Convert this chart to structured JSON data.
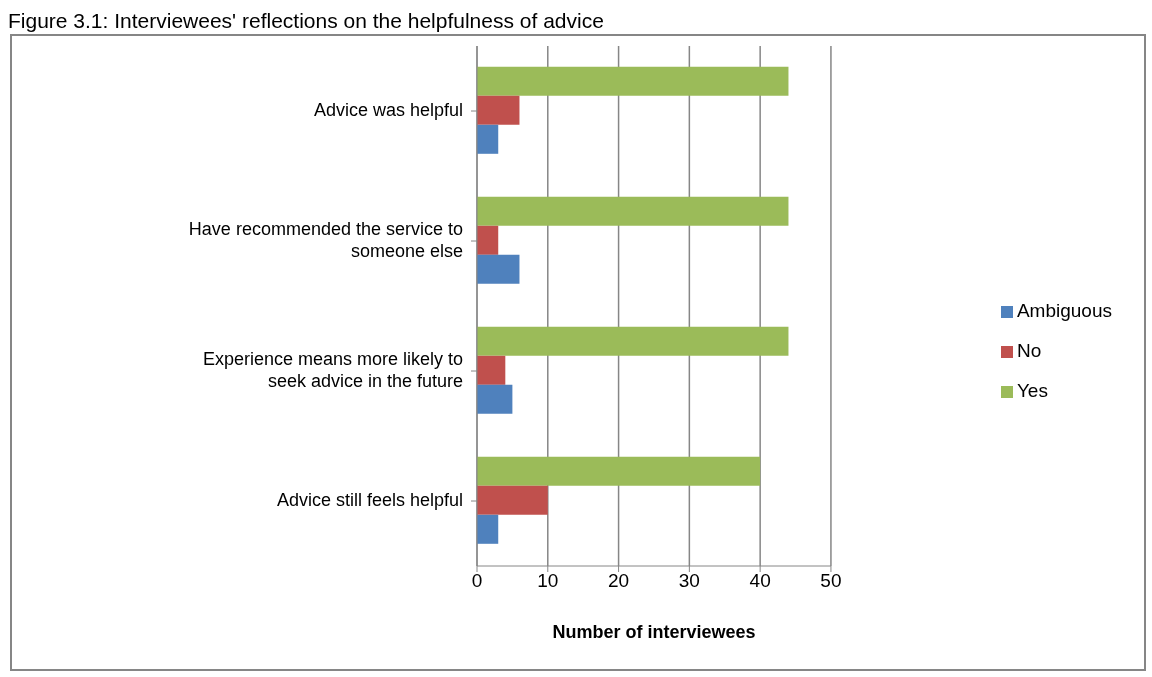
{
  "chart_data": {
    "type": "bar",
    "orientation": "horizontal",
    "title": "Figure 3.1: Interviewees' reflections on the helpfulness of advice",
    "xlabel": "Number of interviewees",
    "categories": [
      "Advice was helpful",
      "Have recommended the service to someone else",
      "Experience means more likely to seek advice in the future",
      "Advice still feels helpful"
    ],
    "series": [
      {
        "name": "Yes",
        "color": "#9bbb59",
        "values": [
          44,
          44,
          44,
          40
        ]
      },
      {
        "name": "No",
        "color": "#c0504d",
        "values": [
          6,
          3,
          4,
          10
        ]
      },
      {
        "name": "Ambiguous",
        "color": "#4f81bd",
        "values": [
          3,
          6,
          5,
          3
        ]
      }
    ],
    "xlim": [
      0,
      50
    ],
    "xticks": [
      0,
      10,
      20,
      30,
      40,
      50
    ],
    "grid": "x",
    "legend": "right"
  }
}
